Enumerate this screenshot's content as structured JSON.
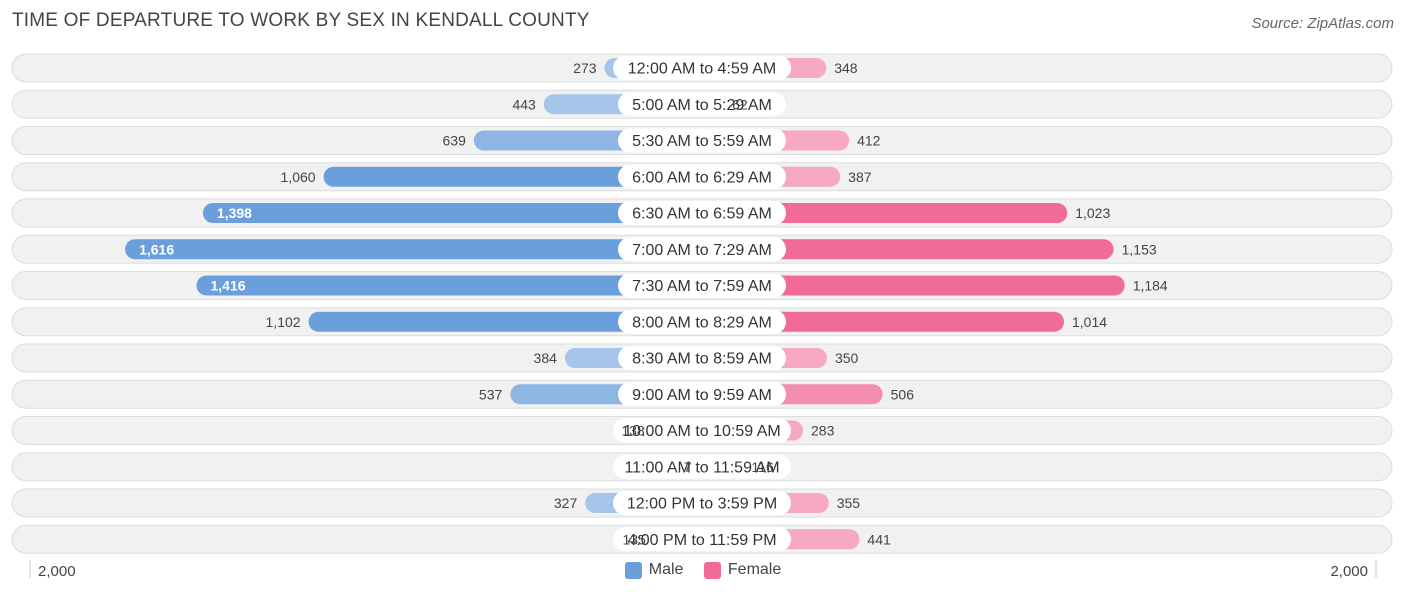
{
  "header": {
    "title": "TIME OF DEPARTURE TO WORK BY SEX IN KENDALL COUNTY",
    "source": "Source: ZipAtlas.com"
  },
  "colors": {
    "male_strong": "#6a9fdc",
    "male_light": "#a5c5ea",
    "female_strong": "#f06b98",
    "female_light": "#f6a8c4",
    "row_bg": "#f1f1f1",
    "row_border": "#dddddd"
  },
  "chart_data": {
    "type": "bar",
    "orientation": "horizontal-diverging",
    "title": "TIME OF DEPARTURE TO WORK BY SEX IN KENDALL COUNTY",
    "categories": [
      "12:00 AM to 4:59 AM",
      "5:00 AM to 5:29 AM",
      "5:30 AM to 5:59 AM",
      "6:00 AM to 6:29 AM",
      "6:30 AM to 6:59 AM",
      "7:00 AM to 7:29 AM",
      "7:30 AM to 7:59 AM",
      "8:00 AM to 8:29 AM",
      "8:30 AM to 8:59 AM",
      "9:00 AM to 9:59 AM",
      "10:00 AM to 10:59 AM",
      "11:00 AM to 11:59 AM",
      "12:00 PM to 3:59 PM",
      "4:00 PM to 11:59 PM"
    ],
    "series": [
      {
        "name": "Male",
        "values": [
          273,
          443,
          639,
          1060,
          1398,
          1616,
          1416,
          1102,
          384,
          537,
          138,
          7,
          327,
          135
        ],
        "labels": [
          "273",
          "443",
          "639",
          "1,060",
          "1,398",
          "1,616",
          "1,416",
          "1,102",
          "384",
          "537",
          "138",
          "7",
          "327",
          "135"
        ]
      },
      {
        "name": "Female",
        "values": [
          348,
          62,
          412,
          387,
          1023,
          1153,
          1184,
          1014,
          350,
          506,
          283,
          116,
          355,
          441
        ],
        "labels": [
          "348",
          "62",
          "412",
          "387",
          "1,023",
          "1,153",
          "1,184",
          "1,014",
          "350",
          "506",
          "283",
          "116",
          "355",
          "441"
        ]
      }
    ],
    "axis": {
      "min_label": "2,000",
      "max_label": "2,000",
      "range": [
        -2000,
        2000
      ]
    },
    "legend": [
      "Male",
      "Female"
    ],
    "legend_position": "bottom-center"
  }
}
